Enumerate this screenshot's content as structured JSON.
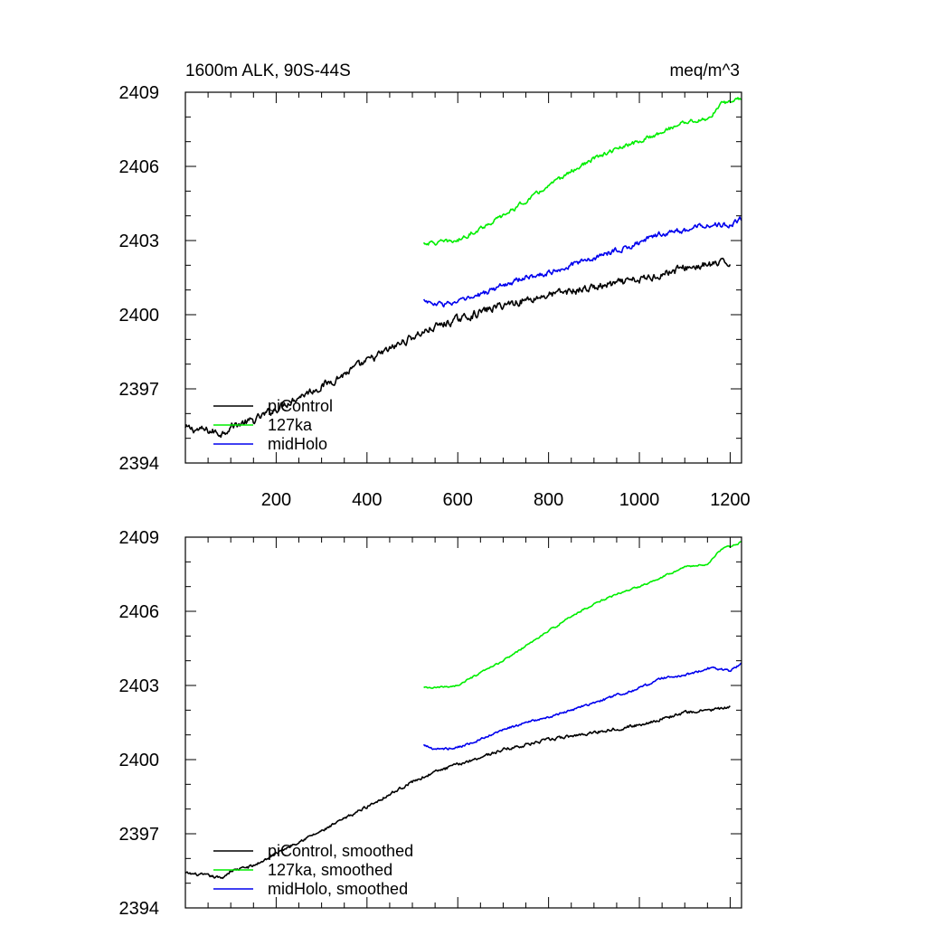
{
  "chart_data": [
    {
      "type": "line",
      "title": "1600m ALK, 90S-44S",
      "units": "meq/m^3",
      "xlabel": "",
      "ylabel": "",
      "xlim": [
        0,
        1225
      ],
      "ylim": [
        2394,
        2409
      ],
      "xticks": [
        200,
        400,
        600,
        800,
        1000,
        1200
      ],
      "xtick_labels": [
        "200",
        "400",
        "600",
        "800",
        "1000",
        "1200"
      ],
      "yticks": [
        2394,
        2397,
        2400,
        2403,
        2406,
        2409
      ],
      "ytick_labels": [
        "2394",
        "2397",
        "2400",
        "2403",
        "2406",
        "2409"
      ],
      "grid": false,
      "legend_position": "bottom-left",
      "series": [
        {
          "name": "piControl",
          "color": "#000000",
          "noise": 0.13,
          "points": [
            [
              0,
              2395.4
            ],
            [
              50,
              2395.3
            ],
            [
              80,
              2395.2
            ],
            [
              100,
              2395.5
            ],
            [
              150,
              2395.7
            ],
            [
              200,
              2396.2
            ],
            [
              250,
              2396.7
            ],
            [
              300,
              2397.1
            ],
            [
              350,
              2397.6
            ],
            [
              400,
              2398.1
            ],
            [
              450,
              2398.6
            ],
            [
              500,
              2399.1
            ],
            [
              550,
              2399.5
            ],
            [
              600,
              2399.8
            ],
            [
              650,
              2400.1
            ],
            [
              700,
              2400.4
            ],
            [
              750,
              2400.6
            ],
            [
              800,
              2400.8
            ],
            [
              900,
              2401.1
            ],
            [
              1000,
              2401.4
            ],
            [
              1100,
              2401.9
            ],
            [
              1150,
              2402.0
            ],
            [
              1200,
              2402.1
            ]
          ]
        },
        {
          "name": "127ka",
          "color": "#00ee00",
          "noise": 0.07,
          "points": [
            [
              525,
              2402.9
            ],
            [
              550,
              2402.9
            ],
            [
              600,
              2403.0
            ],
            [
              650,
              2403.5
            ],
            [
              700,
              2404.0
            ],
            [
              750,
              2404.6
            ],
            [
              800,
              2405.2
            ],
            [
              850,
              2405.8
            ],
            [
              900,
              2406.3
            ],
            [
              950,
              2406.7
            ],
            [
              1000,
              2407.0
            ],
            [
              1050,
              2407.4
            ],
            [
              1100,
              2407.8
            ],
            [
              1150,
              2407.9
            ],
            [
              1180,
              2408.5
            ],
            [
              1225,
              2408.8
            ]
          ]
        },
        {
          "name": "midHolo",
          "color": "#0000ee",
          "noise": 0.09,
          "points": [
            [
              525,
              2400.6
            ],
            [
              550,
              2400.4
            ],
            [
              600,
              2400.5
            ],
            [
              650,
              2400.8
            ],
            [
              700,
              2401.2
            ],
            [
              750,
              2401.5
            ],
            [
              800,
              2401.7
            ],
            [
              850,
              2402.0
            ],
            [
              900,
              2402.3
            ],
            [
              950,
              2402.6
            ],
            [
              1000,
              2402.9
            ],
            [
              1050,
              2403.3
            ],
            [
              1100,
              2403.4
            ],
            [
              1150,
              2403.7
            ],
            [
              1200,
              2403.6
            ],
            [
              1225,
              2403.9
            ]
          ]
        }
      ]
    },
    {
      "type": "line",
      "title": "",
      "xlabel": "",
      "ylabel": "",
      "xlim": [
        0,
        1225
      ],
      "ylim": [
        2394,
        2409
      ],
      "xticks": [
        200,
        400,
        600,
        800,
        1000,
        1200
      ],
      "yticks": [
        2394,
        2397,
        2400,
        2403,
        2406,
        2409
      ],
      "ytick_labels": [
        "2394",
        "2397",
        "2400",
        "2403",
        "2406",
        "2409"
      ],
      "grid": false,
      "legend_position": "bottom-left",
      "series": [
        {
          "name": "piControl, smoothed",
          "color": "#000000",
          "noise": 0.05,
          "points": [
            [
              0,
              2395.4
            ],
            [
              50,
              2395.3
            ],
            [
              80,
              2395.2
            ],
            [
              100,
              2395.5
            ],
            [
              150,
              2395.7
            ],
            [
              200,
              2396.2
            ],
            [
              250,
              2396.7
            ],
            [
              300,
              2397.1
            ],
            [
              350,
              2397.6
            ],
            [
              400,
              2398.1
            ],
            [
              450,
              2398.6
            ],
            [
              500,
              2399.1
            ],
            [
              550,
              2399.5
            ],
            [
              600,
              2399.8
            ],
            [
              650,
              2400.1
            ],
            [
              700,
              2400.4
            ],
            [
              750,
              2400.6
            ],
            [
              800,
              2400.8
            ],
            [
              900,
              2401.1
            ],
            [
              1000,
              2401.4
            ],
            [
              1100,
              2401.9
            ],
            [
              1150,
              2402.0
            ],
            [
              1200,
              2402.1
            ]
          ]
        },
        {
          "name": "127ka, smoothed",
          "color": "#00ee00",
          "noise": 0.03,
          "points": [
            [
              525,
              2402.9
            ],
            [
              550,
              2402.9
            ],
            [
              600,
              2403.0
            ],
            [
              650,
              2403.5
            ],
            [
              700,
              2404.0
            ],
            [
              750,
              2404.6
            ],
            [
              800,
              2405.2
            ],
            [
              850,
              2405.8
            ],
            [
              900,
              2406.3
            ],
            [
              950,
              2406.7
            ],
            [
              1000,
              2407.0
            ],
            [
              1050,
              2407.4
            ],
            [
              1100,
              2407.8
            ],
            [
              1150,
              2407.9
            ],
            [
              1180,
              2408.5
            ],
            [
              1225,
              2408.8
            ]
          ]
        },
        {
          "name": "midHolo, smoothed",
          "color": "#0000ee",
          "noise": 0.04,
          "points": [
            [
              525,
              2400.6
            ],
            [
              550,
              2400.4
            ],
            [
              600,
              2400.5
            ],
            [
              650,
              2400.8
            ],
            [
              700,
              2401.2
            ],
            [
              750,
              2401.5
            ],
            [
              800,
              2401.7
            ],
            [
              850,
              2402.0
            ],
            [
              900,
              2402.3
            ],
            [
              950,
              2402.6
            ],
            [
              1000,
              2402.9
            ],
            [
              1050,
              2403.3
            ],
            [
              1100,
              2403.4
            ],
            [
              1150,
              2403.7
            ],
            [
              1200,
              2403.6
            ],
            [
              1225,
              2403.9
            ]
          ]
        }
      ]
    }
  ]
}
